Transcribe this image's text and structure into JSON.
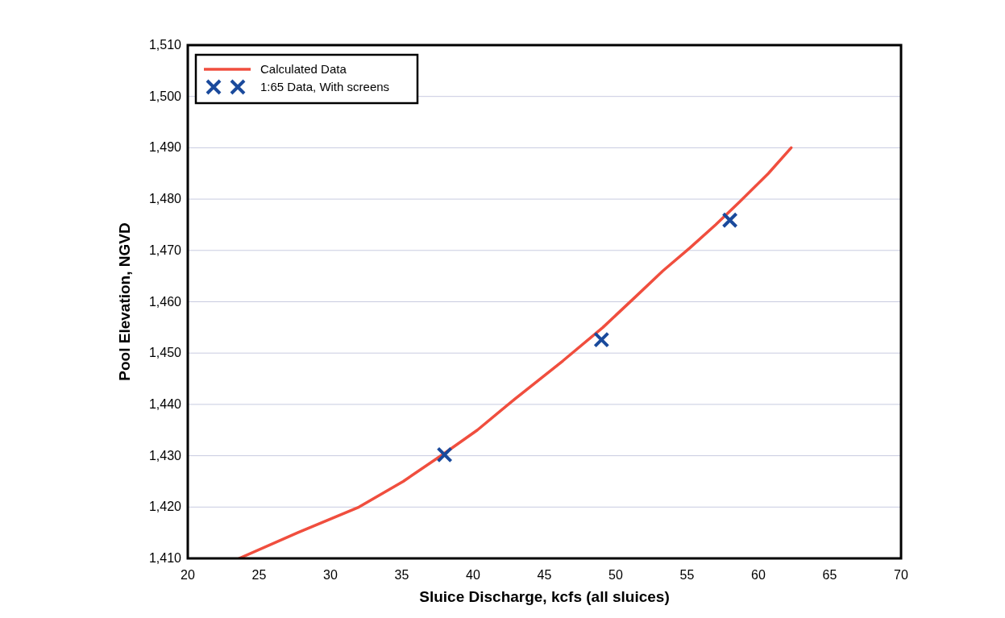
{
  "chart_data": {
    "type": "line",
    "xlabel": "Sluice Discharge, kcfs (all sluices)",
    "ylabel": "Pool Elevation, NGVD",
    "xlim": [
      20,
      70
    ],
    "xticks": [
      20,
      25,
      30,
      35,
      40,
      45,
      50,
      55,
      60,
      65,
      70
    ],
    "ylim": [
      1410,
      1510
    ],
    "yticks": [
      {
        "value": 1410,
        "label": "1,410"
      },
      {
        "value": 1420,
        "label": "1,420"
      },
      {
        "value": 1430,
        "label": "1,430"
      },
      {
        "value": 1440,
        "label": "1,440"
      },
      {
        "value": 1450,
        "label": "1,450"
      },
      {
        "value": 1460,
        "label": "1,460"
      },
      {
        "value": 1470,
        "label": "1,470"
      },
      {
        "value": 1480,
        "label": "1,480"
      },
      {
        "value": 1490,
        "label": "1,490"
      },
      {
        "value": 1500,
        "label": "1,500"
      },
      {
        "value": 1510,
        "label": "1,510"
      }
    ],
    "grid": "y",
    "legend": "top left",
    "series": [
      {
        "name": "Calculated Data",
        "color": "#f04e3e",
        "marker": "none",
        "line_style": "solid",
        "x": [
          23.6,
          27.7,
          32.0,
          35.1,
          37.9,
          40.3,
          42.9,
          46.3,
          49.1,
          51.4,
          53.3,
          55.2,
          57.0,
          58.7,
          60.7,
          62.3
        ],
        "values": [
          1410,
          1415,
          1420,
          1425,
          1430.3,
          1435,
          1441,
          1448.5,
          1455,
          1461,
          1466,
          1470.5,
          1475,
          1479.5,
          1485,
          1490
        ]
      },
      {
        "name": "1:65 Data, With screens",
        "type": "scatter",
        "color": "#1a4a9c",
        "marker": "cross",
        "x": [
          38.0,
          49.0,
          58.0
        ],
        "values": [
          1430.2,
          1452.6,
          1475.9
        ]
      }
    ]
  }
}
